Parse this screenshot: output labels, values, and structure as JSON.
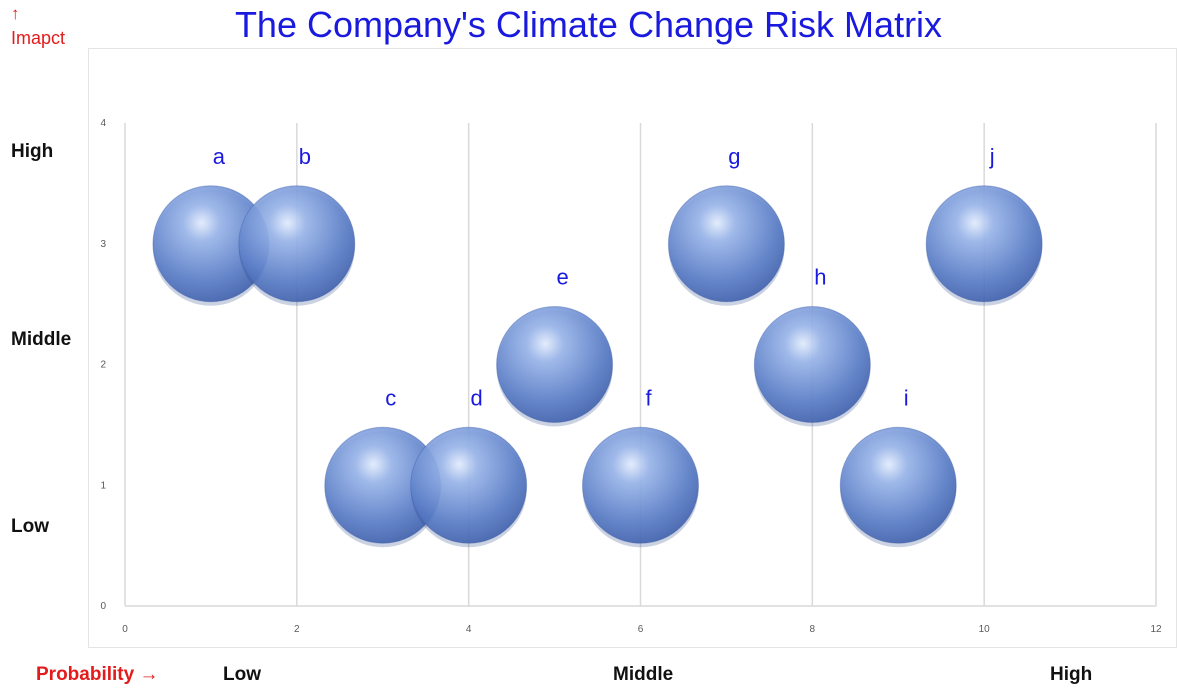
{
  "chart_data": {
    "type": "bubble",
    "title": "The Company's Climate Change Risk Matrix",
    "y_axis": {
      "arrow": "↑",
      "label": "Imapct",
      "range": [
        0,
        4
      ],
      "ticks": [
        "0",
        "1",
        "2",
        "3",
        "4"
      ],
      "categories": [
        "High",
        "Middle",
        "Low"
      ]
    },
    "x_axis": {
      "label": "Probability →",
      "range": [
        0,
        12
      ],
      "ticks": [
        "0",
        "2",
        "4",
        "6",
        "8",
        "10",
        "12"
      ],
      "categories": [
        "Low",
        "Middle",
        "High"
      ]
    },
    "grid": {
      "vertical": true,
      "horizontal": false
    },
    "bubble_color": "#5b7fcb",
    "label_color": "#1a1adf",
    "points": [
      {
        "label": "a",
        "x": 1,
        "y": 3
      },
      {
        "label": "b",
        "x": 2,
        "y": 3
      },
      {
        "label": "c",
        "x": 3,
        "y": 1
      },
      {
        "label": "d",
        "x": 4,
        "y": 1
      },
      {
        "label": "e",
        "x": 5,
        "y": 2
      },
      {
        "label": "f",
        "x": 6,
        "y": 1
      },
      {
        "label": "g",
        "x": 7,
        "y": 3
      },
      {
        "label": "h",
        "x": 8,
        "y": 2
      },
      {
        "label": "i",
        "x": 9,
        "y": 1
      },
      {
        "label": "j",
        "x": 10,
        "y": 3
      }
    ]
  }
}
